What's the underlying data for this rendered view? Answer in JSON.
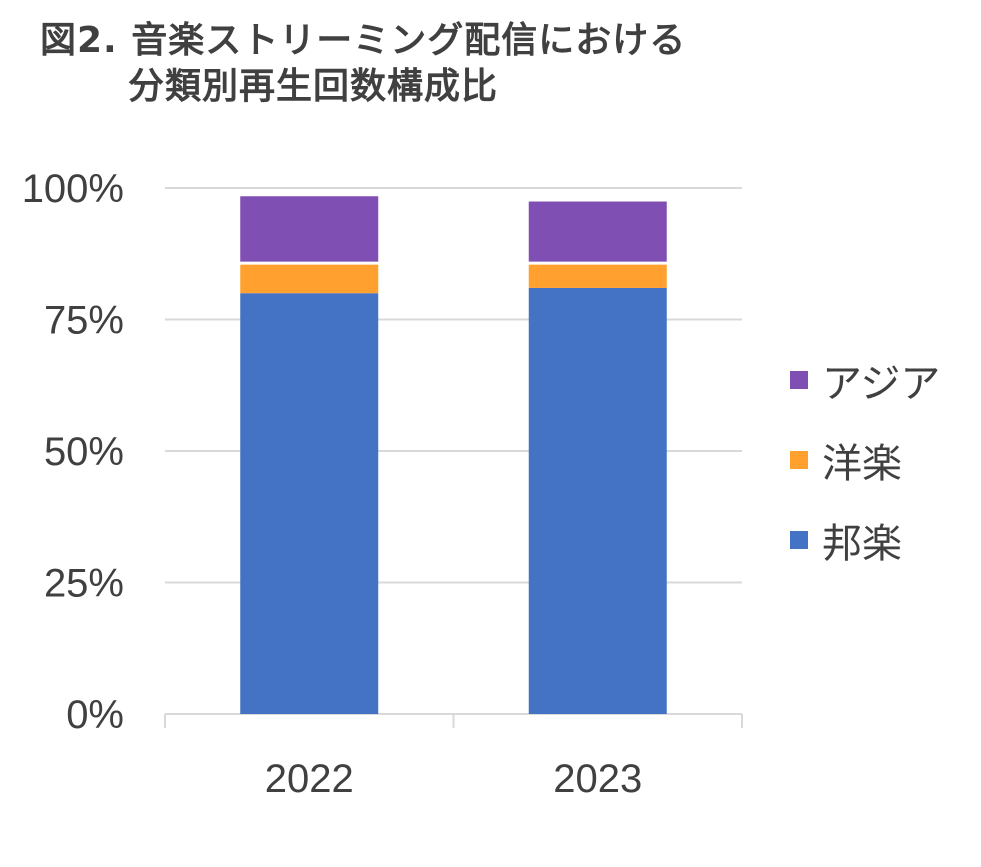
{
  "chart_data": {
    "type": "bar",
    "stacked": true,
    "title_lines": [
      "図2. 音楽ストリーミング配信における",
      "分類別再生回数構成比"
    ],
    "categories": [
      "2022",
      "2023"
    ],
    "series": [
      {
        "name": "邦楽",
        "values": [
          80,
          81
        ],
        "color": "#4472C4"
      },
      {
        "name": "洋楽",
        "values": [
          6,
          5
        ],
        "color": "#FFA02F"
      },
      {
        "name": "アジア",
        "values": [
          13,
          12
        ],
        "color": "#7F4FB3"
      }
    ],
    "y_ticks": [
      "0%",
      "25%",
      "50%",
      "75%",
      "100%"
    ],
    "ylim": [
      0,
      100
    ],
    "grid": true,
    "legend_position": "right",
    "legend_order": [
      "アジア",
      "洋楽",
      "邦楽"
    ]
  }
}
